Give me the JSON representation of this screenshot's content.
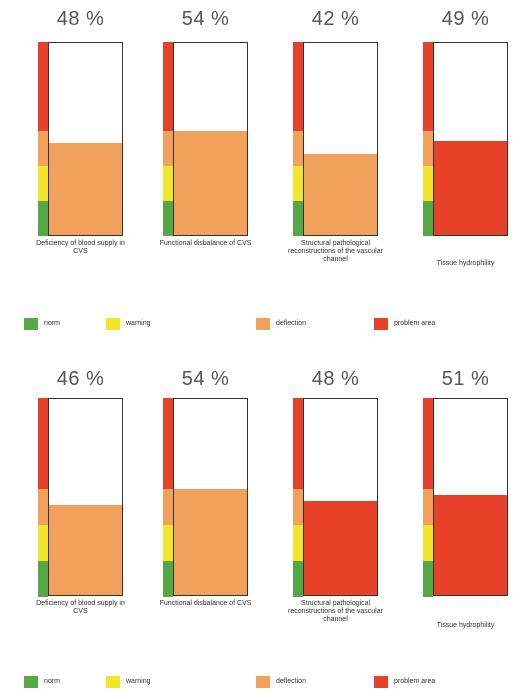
{
  "colors": {
    "norm": "#56a844",
    "warning": "#f2e62a",
    "deflection": "#f2a15c",
    "problem_area": "#e8412a"
  },
  "legend": [
    {
      "key": "norm",
      "label": "norm"
    },
    {
      "key": "warning",
      "label": "warning"
    },
    {
      "key": "deflection",
      "label": "deflection"
    },
    {
      "key": "problem_area",
      "label": "problem area"
    }
  ],
  "chart_data": [
    {
      "type": "bar",
      "ylim": [
        0,
        100
      ],
      "items": [
        {
          "percent_label": "48 %",
          "value": 48,
          "fill": "deflection",
          "caption": "Deficiency of blood supply in CVS"
        },
        {
          "percent_label": "54 %",
          "value": 54,
          "fill": "deflection",
          "caption": "Functional disbalance of CVS"
        },
        {
          "percent_label": "42 %",
          "value": 42,
          "fill": "deflection",
          "caption": "Structural pathological reconstructions of the vascular channel"
        },
        {
          "percent_label": "49 %",
          "value": 49,
          "fill": "problem_area",
          "caption": "Tissue hydrophility"
        }
      ]
    },
    {
      "type": "bar",
      "ylim": [
        0,
        100
      ],
      "items": [
        {
          "percent_label": "46 %",
          "value": 46,
          "fill": "deflection",
          "caption": "Deficiency of blood supply in CVS"
        },
        {
          "percent_label": "54 %",
          "value": 54,
          "fill": "deflection",
          "caption": "Functional disbalance of CVS"
        },
        {
          "percent_label": "48 %",
          "value": 48,
          "fill": "problem_area",
          "caption": "Structural pathological reconstructions of the vascular channel"
        },
        {
          "percent_label": "51 %",
          "value": 51,
          "fill": "problem_area",
          "caption": "Tissue hydrophility"
        }
      ]
    }
  ]
}
